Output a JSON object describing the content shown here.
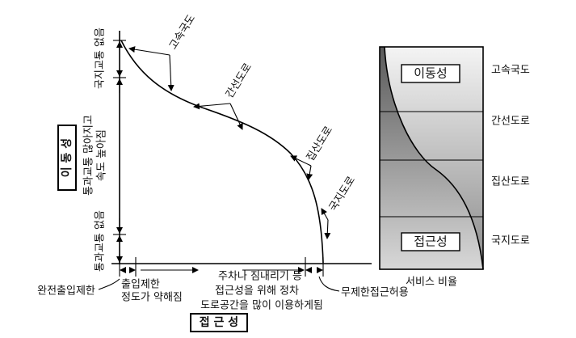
{
  "mobility_label": "이 동 성",
  "access_label": "접 근 성",
  "vertical_notes": [
    "국지교통 없음",
    "통과교통 많아지고",
    "속도 높아짐",
    "통과교통 없음"
  ],
  "curve_labels": [
    "고속국도",
    "간선도로",
    "집산도로",
    "국지도로"
  ],
  "horizontal_notes": {
    "full_control": "완전출입제한",
    "partial": [
      "출입제한",
      "정도가 약해짐"
    ],
    "parking": [
      "주차나 짐내리기 등",
      "접근성을 위해 정차",
      "도로공간을 많이 이용하게됨"
    ],
    "unlimited": "무제한접근허용"
  },
  "service_chart": {
    "mobility": "이동성",
    "access": "접근성",
    "caption": "서비스 비율",
    "classes": [
      "고속국도",
      "간선도로",
      "집산도로",
      "국지도로"
    ]
  }
}
